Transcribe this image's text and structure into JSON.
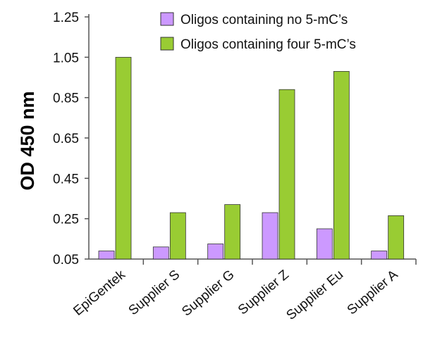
{
  "chart_data": {
    "type": "bar",
    "title": "",
    "xlabel": "",
    "ylabel": "OD 450 nm",
    "ylim": [
      0.05,
      1.25
    ],
    "yticks": [
      "0.05",
      "0.25",
      "0.45",
      "0.65",
      "0.85",
      "1.05",
      "1.25"
    ],
    "ytick_values": [
      0.05,
      0.25,
      0.45,
      0.65,
      0.85,
      1.05,
      1.25
    ],
    "categories": [
      "EpiGentek",
      "Supplier S",
      "Supplier G",
      "Supplier Z",
      "Supplier Eu",
      "Supplier A"
    ],
    "highlight_category_color": "#1f6b3a",
    "series": [
      {
        "name": "Oligos containing no 5-mC’s",
        "color": "#cc99ff",
        "values": [
          0.09,
          0.11,
          0.125,
          0.28,
          0.2,
          0.09
        ]
      },
      {
        "name": "Oligos containing four 5-mC’s",
        "color": "#99cc33",
        "values": [
          1.05,
          0.28,
          0.32,
          0.89,
          0.98,
          0.265
        ]
      }
    ],
    "legend_position": "top-right"
  }
}
